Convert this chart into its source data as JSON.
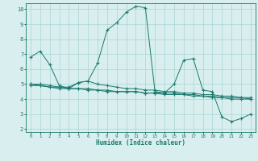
{
  "xlabel": "Humidex (Indice chaleur)",
  "x": [
    0,
    1,
    2,
    3,
    4,
    5,
    6,
    7,
    8,
    9,
    10,
    11,
    12,
    13,
    14,
    15,
    16,
    17,
    18,
    19,
    20,
    21,
    22,
    23
  ],
  "series1": [
    6.8,
    7.2,
    6.3,
    4.9,
    4.7,
    5.1,
    5.2,
    6.4,
    8.6,
    9.1,
    9.8,
    10.2,
    10.1,
    4.5,
    4.4,
    5.0,
    6.6,
    6.7,
    4.6,
    4.5,
    2.8,
    2.5,
    2.7,
    3.0
  ],
  "series2": [
    4.9,
    4.9,
    4.8,
    4.7,
    4.7,
    4.7,
    4.7,
    4.6,
    4.6,
    4.5,
    4.5,
    4.5,
    4.4,
    4.4,
    4.4,
    4.4,
    4.3,
    4.3,
    4.2,
    4.2,
    4.1,
    4.1,
    4.1,
    4.0
  ],
  "series3": [
    5.0,
    5.0,
    4.9,
    4.8,
    4.8,
    5.1,
    5.2,
    5.0,
    4.9,
    4.8,
    4.7,
    4.7,
    4.6,
    4.6,
    4.5,
    4.5,
    4.4,
    4.4,
    4.3,
    4.3,
    4.2,
    4.2,
    4.1,
    4.1
  ],
  "series4": [
    5.0,
    4.9,
    4.8,
    4.8,
    4.7,
    4.7,
    4.6,
    4.6,
    4.5,
    4.5,
    4.5,
    4.5,
    4.4,
    4.4,
    4.3,
    4.3,
    4.3,
    4.2,
    4.2,
    4.1,
    4.1,
    4.0,
    4.0,
    4.0
  ],
  "line_color": "#1a7a6e",
  "bg_color": "#d9eeee",
  "grid_color": "#aad4d4",
  "ylim_min": 1.8,
  "ylim_max": 10.4,
  "xlim_min": -0.5,
  "xlim_max": 23.5,
  "yticks": [
    2,
    3,
    4,
    5,
    6,
    7,
    8,
    9,
    10
  ],
  "xticks": [
    0,
    1,
    2,
    3,
    4,
    5,
    6,
    7,
    8,
    9,
    10,
    11,
    12,
    13,
    14,
    15,
    16,
    17,
    18,
    19,
    20,
    21,
    22,
    23
  ]
}
